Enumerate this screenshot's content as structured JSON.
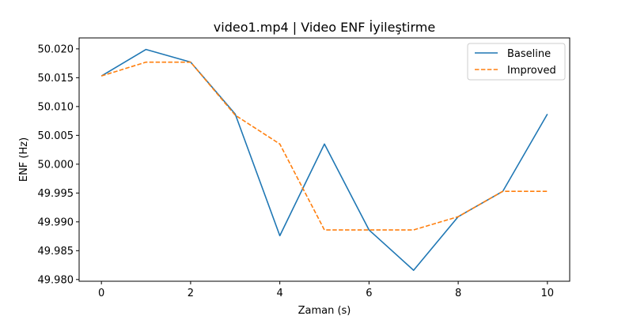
{
  "chart_data": {
    "type": "line",
    "title": "video1.mp4 | Video ENF İyileştirme",
    "xlabel": "Zaman (s)",
    "ylabel": "ENF (Hz)",
    "xlim": [
      -0.5,
      10.5
    ],
    "ylim": [
      49.9797,
      50.0219
    ],
    "xticks": [
      0,
      2,
      4,
      6,
      8,
      10
    ],
    "yticks": [
      49.98,
      49.985,
      49.99,
      49.995,
      50.0,
      50.005,
      50.01,
      50.015,
      50.02
    ],
    "ytick_decimals": 3,
    "grid": false,
    "legend": "top-right",
    "series": [
      {
        "name": "Baseline",
        "color": "#1f77b4",
        "style": "solid",
        "x": [
          0,
          1,
          2,
          3,
          4,
          5,
          6,
          7,
          8,
          9,
          10
        ],
        "y": [
          50.0153,
          50.0199,
          50.0177,
          50.0087,
          49.9876,
          50.0035,
          49.9886,
          49.9816,
          49.9909,
          49.9953,
          50.0087
        ]
      },
      {
        "name": "Improved",
        "color": "#ff7f0e",
        "style": "dashed",
        "x": [
          0,
          1,
          2,
          3,
          4,
          5,
          6,
          7,
          8,
          9,
          10
        ],
        "y": [
          50.0153,
          50.0177,
          50.0177,
          50.0085,
          50.0035,
          49.9886,
          49.9886,
          49.9886,
          49.9909,
          49.9953,
          49.9953
        ]
      }
    ]
  }
}
